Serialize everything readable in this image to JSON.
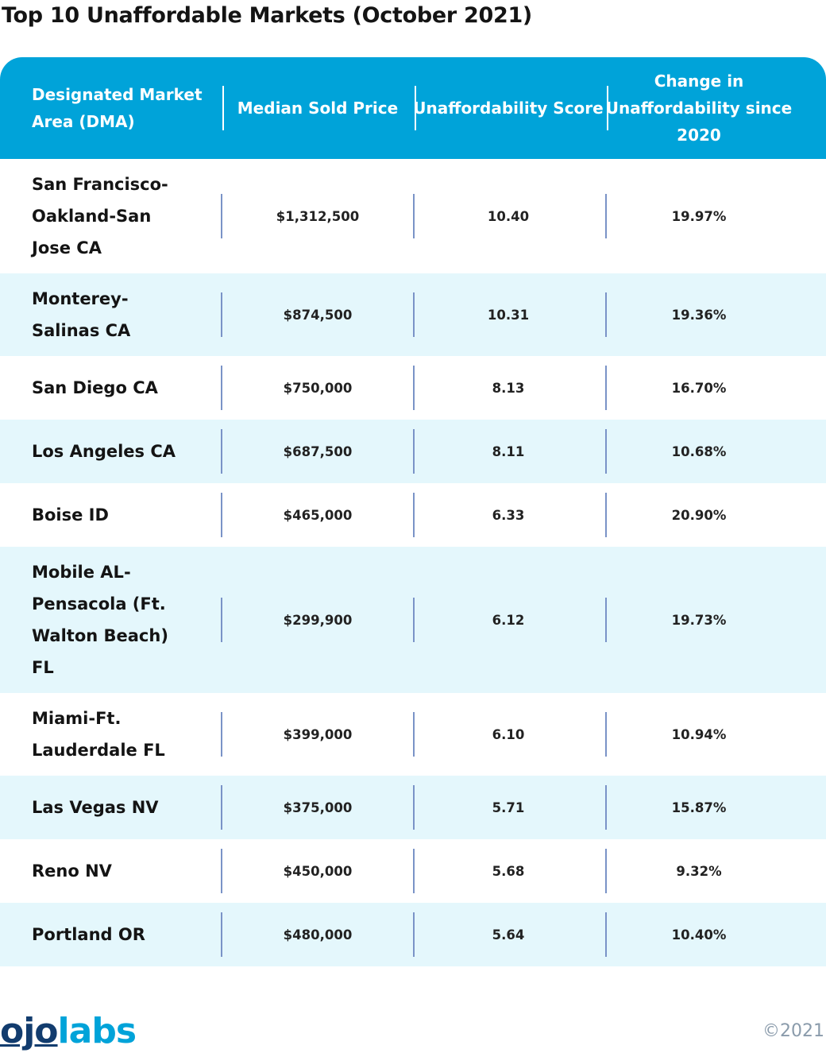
{
  "title": "Top 10 Unaffordable Markets (October 2021)",
  "chart_data": {
    "type": "table",
    "title": "Top 10 Unaffordable Markets (October 2021)",
    "columns": [
      "Designated Market Area (DMA)",
      "Median Sold Price",
      "Unaffordability Score",
      "Change in Unaffordability since 2020"
    ],
    "rows": [
      [
        "San Francisco-Oakland-San Jose CA",
        "$1,312,500",
        "10.40",
        "19.97%"
      ],
      [
        "Monterey-Salinas CA",
        "$874,500",
        "10.31",
        "19.36%"
      ],
      [
        "San Diego CA",
        "$750,000",
        "8.13",
        "16.70%"
      ],
      [
        "Los Angeles CA",
        "$687,500",
        "8.11",
        "10.68%"
      ],
      [
        "Boise ID",
        "$465,000",
        "6.33",
        "20.90%"
      ],
      [
        "Mobile AL-Pensacola (Ft. Walton Beach) FL",
        "$299,900",
        "6.12",
        "19.73%"
      ],
      [
        "Miami-Ft. Lauderdale FL",
        "$399,000",
        "6.10",
        "10.94%"
      ],
      [
        "Las Vegas NV",
        "$375,000",
        "5.71",
        "15.87%"
      ],
      [
        "Reno NV",
        "$450,000",
        "5.68",
        "9.32%"
      ],
      [
        "Portland OR",
        "$480,000",
        "5.64",
        "10.40%"
      ]
    ],
    "colors": {
      "header": "#00a3d9",
      "alt_row": "#e4f7fc",
      "divider": "#7a93c7"
    }
  },
  "footer": {
    "logo": {
      "part1": "ojo",
      "part2": "labs"
    },
    "copyright": "©2021"
  }
}
